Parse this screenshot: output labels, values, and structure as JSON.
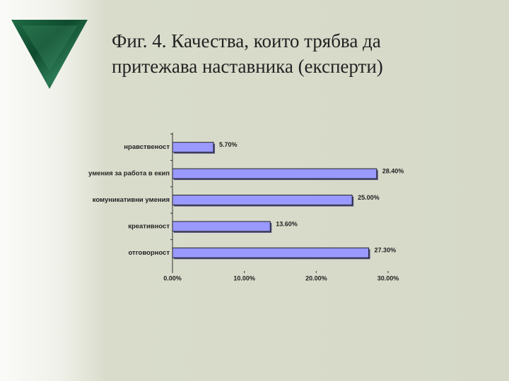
{
  "chart_data": {
    "type": "barh",
    "title": "Фиг. 4. Качества, които трябва да притежава наставника (експерти)",
    "categories": [
      "нравственост",
      "умения за работа в екип",
      "комуникативни умения",
      "креативност",
      "отговорност"
    ],
    "values": [
      5.7,
      28.4,
      25.0,
      13.6,
      27.3
    ],
    "value_labels": [
      "5.70%",
      "28.40%",
      "25.00%",
      "13.60%",
      "27.30%"
    ],
    "color": "#9999ff",
    "xlim": [
      0,
      30
    ],
    "xticks": [
      {
        "value": 0,
        "label": "0.00%"
      },
      {
        "value": 10,
        "label": "10.00%"
      },
      {
        "value": 20,
        "label": "20.00%"
      },
      {
        "value": 30,
        "label": "30.00%"
      }
    ],
    "grid": false
  }
}
